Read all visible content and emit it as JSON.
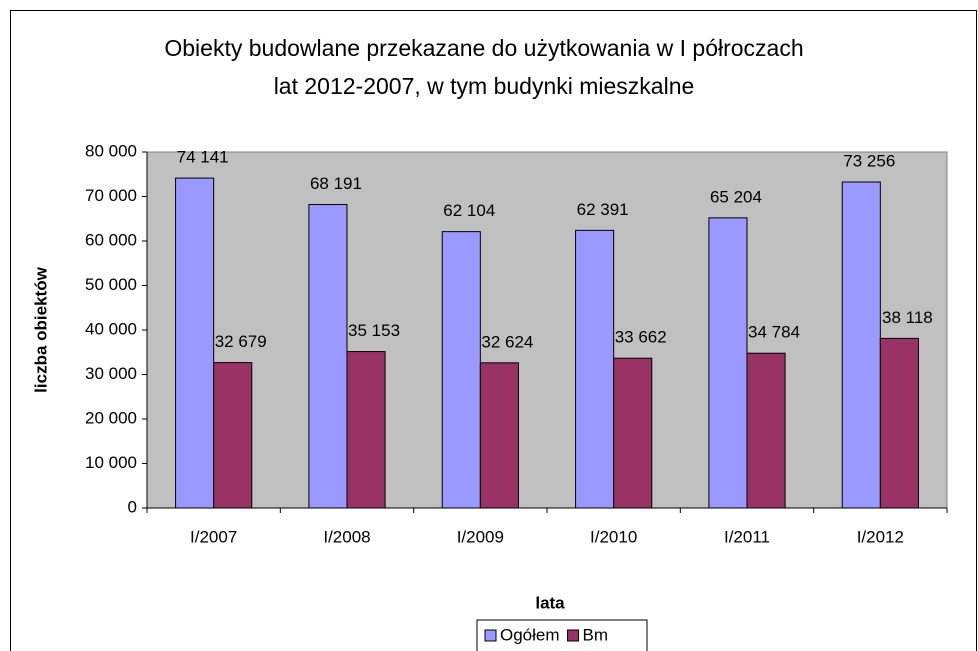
{
  "chart_data": {
    "type": "bar",
    "title": [
      "Obiekty budowlane przekazane do użytkowania w I półroczach",
      "lat 2012-2007, w tym budynki mieszkalne"
    ],
    "x_label": "lata",
    "y_label": "liczba obiektów",
    "categories": [
      "I/2007",
      "I/2008",
      "I/2009",
      "I/2010",
      "I/2011",
      "I/2012"
    ],
    "series": [
      {
        "name": "Ogółem",
        "color": "#9999ff",
        "values": [
          74141,
          68191,
          62104,
          62391,
          65204,
          73256
        ],
        "value_labels": [
          "74 141",
          "68 191",
          "62 104",
          "62 391",
          "65 204",
          "73 256"
        ]
      },
      {
        "name": "Bm",
        "color": "#993366",
        "values": [
          32679,
          35153,
          32624,
          33662,
          34784,
          38118
        ],
        "value_labels": [
          "32 679",
          "35 153",
          "32 624",
          "33 662",
          "34 784",
          "38 118"
        ]
      }
    ],
    "ylim": [
      0,
      80000
    ],
    "yticks": [
      0,
      {
        "value": 10000,
        "label": "10 000"
      },
      {
        "value": 20000,
        "label": "20 000"
      },
      {
        "value": 30000,
        "label": "30 000"
      },
      {
        "value": 40000,
        "label": "40 000"
      },
      {
        "value": 50000,
        "label": "50 000"
      },
      {
        "value": 60000,
        "label": "60 000"
      },
      {
        "value": 70000,
        "label": "70 000"
      },
      {
        "value": 80000,
        "label": "80 000"
      }
    ],
    "grid": false,
    "legend": "bottom",
    "plot_background": "#c0c0c0"
  }
}
